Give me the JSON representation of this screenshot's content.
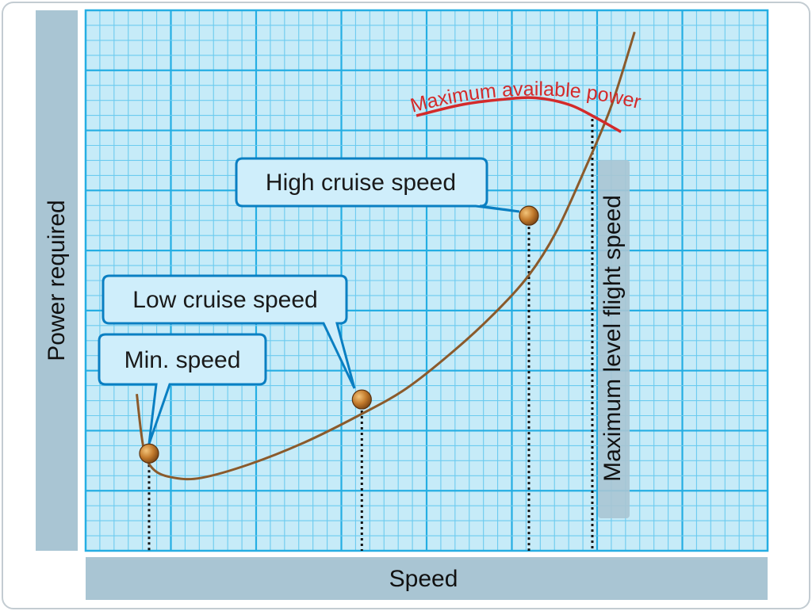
{
  "chart_data": {
    "type": "line",
    "xlabel": "Speed",
    "ylabel": "Power required",
    "xlim": [
      0,
      100
    ],
    "ylim": [
      0,
      100
    ],
    "grid": true,
    "series": [
      {
        "name": "",
        "color": "#8b5a2b",
        "x": [
          7.5,
          8.5,
          10,
          13,
          17,
          24,
          32,
          40,
          47,
          54,
          60,
          65,
          69,
          73,
          77,
          80.5
        ],
        "y": [
          29,
          19,
          15,
          13.5,
          13.5,
          16,
          20,
          25,
          30,
          37,
          44,
          51,
          59,
          70,
          82,
          96
        ]
      },
      {
        "name": "Maximum available power",
        "color": "#d42a2a",
        "x": [
          48.5,
          55,
          61,
          66,
          71,
          75,
          78.5
        ],
        "y": [
          80.5,
          82.5,
          83.5,
          83.8,
          82.5,
          80,
          77.5
        ]
      }
    ],
    "points": [
      {
        "label": "Min. speed",
        "x": 9.3,
        "y": 18
      },
      {
        "label": "Low cruise speed",
        "x": 40.5,
        "y": 28
      },
      {
        "label": "High cruise speed",
        "x": 65,
        "y": 62
      }
    ],
    "max_speed_line": {
      "label": "Maximum level flight speed",
      "x": 74.3
    },
    "annotations": [
      "Maximum available power",
      "Maximum level flight speed"
    ]
  },
  "colors": {
    "grid_bg": "#c6ebf8",
    "grid_major": "#25aee3",
    "grid_minor": "#6ccbef",
    "axis_bar": "#a9c5d3",
    "curve": "#8b5a2b",
    "available_power": "#d42a2a",
    "callout_fill": "#cfeefb",
    "callout_stroke": "#0a7fc2"
  }
}
